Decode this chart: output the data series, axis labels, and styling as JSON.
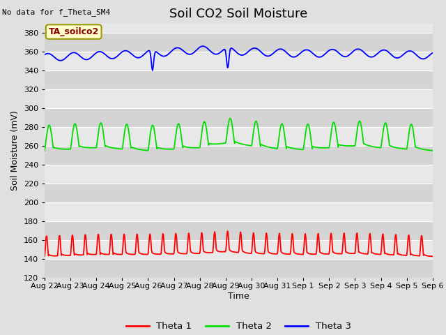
{
  "title": "Soil CO2 Soil Moisture",
  "ylabel": "Soil Moisture (mV)",
  "xlabel": "Time",
  "no_data_text": "No data for f_Theta_SM4",
  "label_text": "TA_soilco2",
  "ylim": [
    120,
    390
  ],
  "yticks": [
    120,
    140,
    160,
    180,
    200,
    220,
    240,
    260,
    280,
    300,
    320,
    340,
    360,
    380
  ],
  "x_labels": [
    "Aug 22",
    "Aug 23",
    "Aug 24",
    "Aug 25",
    "Aug 26",
    "Aug 27",
    "Aug 28",
    "Aug 29",
    "Aug 30",
    "Aug 31",
    "Sep 1",
    "Sep 2",
    "Sep 3",
    "Sep 4",
    "Sep 5",
    "Sep 6"
  ],
  "n_days": 15,
  "bg_color": "#e0e0e0",
  "plot_bg_light": "#e8e8e8",
  "plot_bg_dark": "#d4d4d4",
  "legend_labels": [
    "Theta 1",
    "Theta 2",
    "Theta 3"
  ],
  "legend_colors": [
    "#ff0000",
    "#00dd00",
    "#0000ff"
  ],
  "title_fontsize": 13,
  "axis_label_fontsize": 9,
  "tick_fontsize": 8
}
